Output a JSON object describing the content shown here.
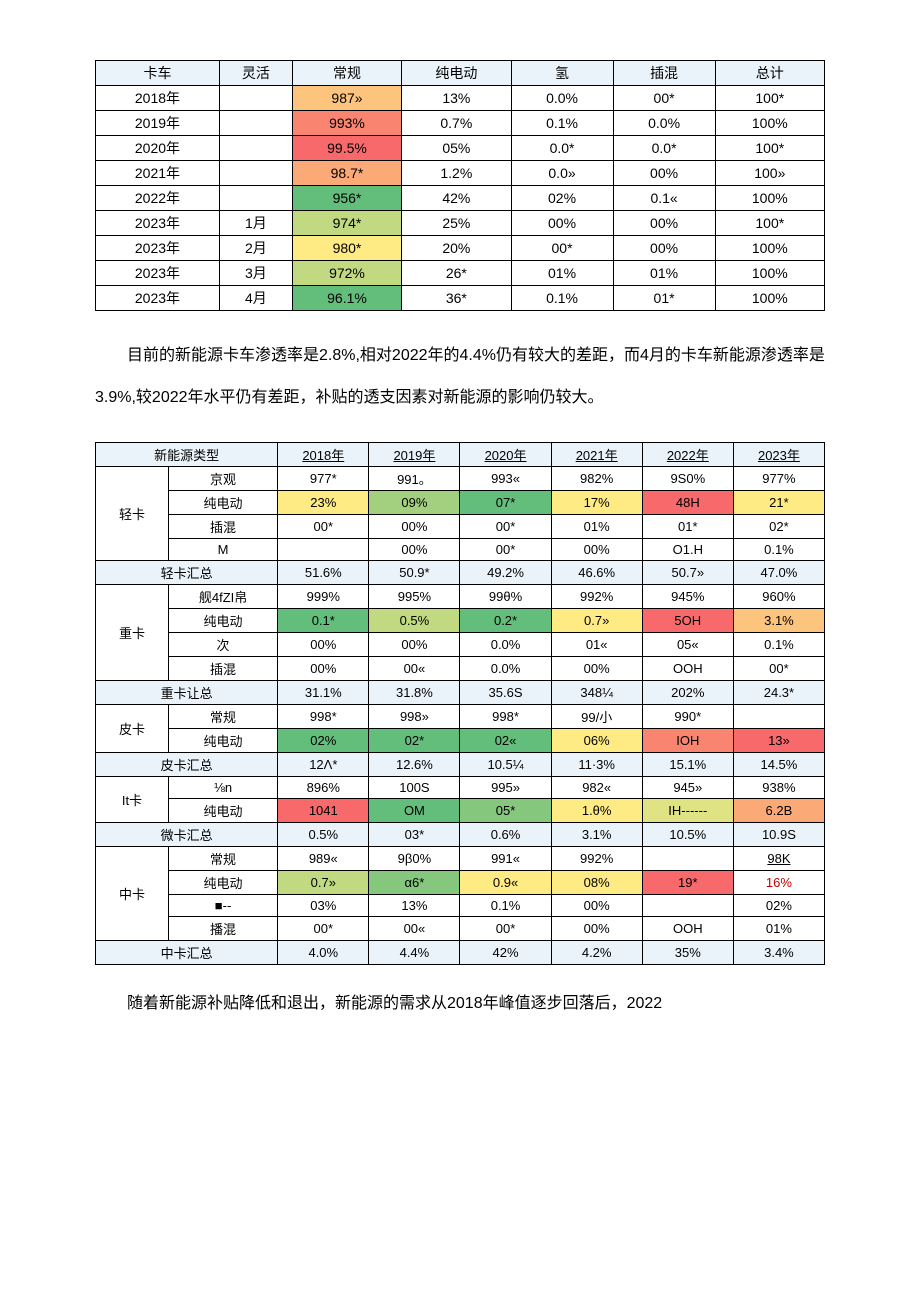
{
  "colors": {
    "header_bg": "#eaf3fa",
    "heat": {
      "deep_red": "#f8696b",
      "red": "#f98570",
      "orange": "#fba977",
      "lt_orange": "#fdc47d",
      "yellow": "#ffe383",
      "lt_yellow": "#ffeb84",
      "pale_yellow": "#e0e383",
      "yellow_green": "#c1da81",
      "lt_green": "#a2d07f",
      "green": "#84c77d",
      "deep_green": "#63be7b"
    }
  },
  "table1": {
    "headers": [
      "卡车",
      "灵活",
      "常规",
      "纯电动",
      "氢",
      "插混",
      "总计"
    ],
    "rows": [
      {
        "c0": "2018年",
        "c1": "",
        "c2": {
          "v": "987»",
          "bg": "lt_orange"
        },
        "c3": "13%",
        "c4": "0.0%",
        "c5": "00*",
        "c6": "100*"
      },
      {
        "c0": "2019年",
        "c1": "",
        "c2": {
          "v": "993%",
          "bg": "red"
        },
        "c3": "0.7%",
        "c4": "0.1%",
        "c5": "0.0%",
        "c6": "100%"
      },
      {
        "c0": "2020年",
        "c1": "",
        "c2": {
          "v": "99.5%",
          "bg": "deep_red"
        },
        "c3": "05%",
        "c4": "0.0*",
        "c5": "0.0*",
        "c6": "100*"
      },
      {
        "c0": "2021年",
        "c1": "",
        "c2": {
          "v": "98.7*",
          "bg": "orange"
        },
        "c3": "1.2%",
        "c4": "0.0»",
        "c5": "00%",
        "c6": "100»"
      },
      {
        "c0": "2022年",
        "c1": "",
        "c2": {
          "v": "956*",
          "bg": "deep_green"
        },
        "c3": "42%",
        "c4": "02%",
        "c5": "0.1«",
        "c6": "100%"
      },
      {
        "c0": "2023年",
        "c1": "1月",
        "c2": {
          "v": "974*",
          "bg": "yellow_green"
        },
        "c3": "25%",
        "c4": "00%",
        "c5": "00%",
        "c6": "100*"
      },
      {
        "c0": "2023年",
        "c1": "2月",
        "c2": {
          "v": "980*",
          "bg": "lt_yellow"
        },
        "c3": "20%",
        "c4": "00*",
        "c5": "00%",
        "c6": "100%"
      },
      {
        "c0": "2023年",
        "c1": "3月",
        "c2": {
          "v": "972%",
          "bg": "yellow_green"
        },
        "c3": "26*",
        "c4": "01%",
        "c5": "01%",
        "c6": "100%"
      },
      {
        "c0": "2023年",
        "c1": "4月",
        "c2": {
          "v": "96.1%",
          "bg": "deep_green"
        },
        "c3": "36*",
        "c4": "0.1%",
        "c5": "01*",
        "c6": "100%"
      }
    ]
  },
  "para1": "目前的新能源卡车渗透率是2.8%,相对2022年的4.4%仍有较大的差距，而4月的卡车新能源渗透率是3.9%,较2022年水平仍有差距，补贴的透支因素对新能源的影响仍较大。",
  "table2": {
    "headers": [
      "新能源类型",
      "2018年",
      "2019年",
      "2020年",
      "2021年",
      "2022年",
      "2023年"
    ],
    "groups": [
      {
        "cat": "轻卡",
        "rows": [
          {
            "sub": "京观",
            "vals": [
              {
                "v": "977*"
              },
              {
                "v": "991。"
              },
              {
                "v": "993«"
              },
              {
                "v": "982%"
              },
              {
                "v": "9S0%"
              },
              {
                "v": "977%"
              }
            ]
          },
          {
            "sub": "纯电动",
            "vals": [
              {
                "v": "23%",
                "bg": "lt_yellow"
              },
              {
                "v": "09%",
                "bg": "lt_green"
              },
              {
                "v": "07*",
                "bg": "deep_green"
              },
              {
                "v": "17%",
                "bg": "lt_yellow"
              },
              {
                "v": "48H",
                "bg": "deep_red"
              },
              {
                "v": "21*",
                "bg": "lt_yellow"
              }
            ]
          },
          {
            "sub": "插混",
            "vals": [
              {
                "v": "00*"
              },
              {
                "v": "00%"
              },
              {
                "v": "00*"
              },
              {
                "v": "01%"
              },
              {
                "v": "01*"
              },
              {
                "v": "02*"
              }
            ]
          },
          {
            "sub": "M",
            "vals": [
              {
                "v": ""
              },
              {
                "v": "00%"
              },
              {
                "v": "00*"
              },
              {
                "v": "00%"
              },
              {
                "v": "O1.H"
              },
              {
                "v": "0.1%"
              }
            ]
          }
        ],
        "sum": {
          "label": "轻卡汇总",
          "vals": [
            "51.6%",
            "50.9*",
            "49.2%",
            "46.6%",
            "50.7»",
            "47.0%"
          ]
        }
      },
      {
        "cat": "重卡",
        "rows": [
          {
            "sub": "舰4fZI帛",
            "vals": [
              {
                "v": "999%"
              },
              {
                "v": "995%"
              },
              {
                "v": "99θ%"
              },
              {
                "v": "992%"
              },
              {
                "v": "945%"
              },
              {
                "v": "960%"
              }
            ]
          },
          {
            "sub": "纯电动",
            "vals": [
              {
                "v": "0.1*",
                "bg": "deep_green"
              },
              {
                "v": "0.5%",
                "bg": "yellow_green"
              },
              {
                "v": "0.2*",
                "bg": "deep_green"
              },
              {
                "v": "0.7»",
                "bg": "lt_yellow"
              },
              {
                "v": "5OH",
                "bg": "deep_red"
              },
              {
                "v": "3.1%",
                "bg": "lt_orange"
              }
            ]
          },
          {
            "sub": "次",
            "vals": [
              {
                "v": "00%"
              },
              {
                "v": "00%"
              },
              {
                "v": "0.0%"
              },
              {
                "v": "01«"
              },
              {
                "v": "05«"
              },
              {
                "v": "0.1%"
              }
            ]
          },
          {
            "sub": "插混",
            "vals": [
              {
                "v": "00%"
              },
              {
                "v": "00«"
              },
              {
                "v": "0.0%"
              },
              {
                "v": "00%"
              },
              {
                "v": "OOH"
              },
              {
                "v": "00*"
              }
            ]
          }
        ],
        "sum": {
          "label": "重卡让总",
          "vals": [
            "31.1%",
            "31.8%",
            "35.6S",
            "348¼",
            "202%",
            "24.3*"
          ]
        }
      },
      {
        "cat": "皮卡",
        "rows": [
          {
            "sub": "常规",
            "vals": [
              {
                "v": "998*"
              },
              {
                "v": "998»"
              },
              {
                "v": "998*"
              },
              {
                "v": "99/小"
              },
              {
                "v": "990*"
              },
              {
                "v": ""
              }
            ]
          },
          {
            "sub": "纯电动",
            "vals": [
              {
                "v": "02%",
                "bg": "deep_green"
              },
              {
                "v": "02*",
                "bg": "deep_green"
              },
              {
                "v": "02«",
                "bg": "deep_green"
              },
              {
                "v": "06%",
                "bg": "lt_yellow"
              },
              {
                "v": "IOH",
                "bg": "red"
              },
              {
                "v": "13»",
                "bg": "deep_red"
              }
            ]
          }
        ],
        "sum": {
          "label": "皮卡汇总",
          "vals": [
            "12Λ*",
            "12.6%",
            "10.5¼",
            "11·3%",
            "15.1%",
            "14.5%"
          ]
        }
      },
      {
        "cat": "It卡",
        "rows": [
          {
            "sub": "⅛n",
            "vals": [
              {
                "v": "896%"
              },
              {
                "v": "100S"
              },
              {
                "v": "995»"
              },
              {
                "v": "982«"
              },
              {
                "v": "945»"
              },
              {
                "v": "938%"
              }
            ]
          },
          {
            "sub": "纯电动",
            "vals": [
              {
                "v": "1041",
                "bg": "deep_red"
              },
              {
                "v": "OM",
                "bg": "deep_green"
              },
              {
                "v": "05*",
                "bg": "green"
              },
              {
                "v": "1.θ%",
                "bg": "lt_yellow"
              },
              {
                "v": "IH------",
                "bg": "pale_yellow"
              },
              {
                "v": "6.2B",
                "bg": "orange"
              }
            ]
          }
        ],
        "sum": {
          "label": "微卡汇总",
          "vals": [
            "0.5%",
            "03*",
            "0.6%",
            "3.1%",
            "10.5%",
            "10.9S"
          ]
        }
      },
      {
        "cat": "中卡",
        "rows": [
          {
            "sub": "常规",
            "vals": [
              {
                "v": "989«"
              },
              {
                "v": "9β0%"
              },
              {
                "v": "991«"
              },
              {
                "v": "992%"
              },
              {
                "v": ""
              },
              {
                "v": "98K",
                "underline": true
              }
            ]
          },
          {
            "sub": "纯电动",
            "vals": [
              {
                "v": "0.7»",
                "bg": "yellow_green"
              },
              {
                "v": "α6*",
                "bg": "green"
              },
              {
                "v": "0.9«",
                "bg": "lt_yellow"
              },
              {
                "v": "08%",
                "bg": "lt_yellow"
              },
              {
                "v": "19*",
                "bg": "deep_red"
              },
              {
                "v": "16%",
                "color": "#c00000"
              }
            ]
          },
          {
            "sub": "■--",
            "vals": [
              {
                "v": "03%"
              },
              {
                "v": "13%"
              },
              {
                "v": "0.1%"
              },
              {
                "v": "00%"
              },
              {
                "v": ""
              },
              {
                "v": "02%"
              }
            ]
          },
          {
            "sub": "播混",
            "vals": [
              {
                "v": "00*"
              },
              {
                "v": "00«"
              },
              {
                "v": "00*"
              },
              {
                "v": "00%"
              },
              {
                "v": "OOH"
              },
              {
                "v": "01%"
              }
            ]
          }
        ],
        "sum": {
          "label": "中卡汇总",
          "vals": [
            "4.0%",
            "4.4%",
            "42%",
            "4.2%",
            "35%",
            "3.4%"
          ]
        }
      }
    ]
  },
  "para2": "随着新能源补贴降低和退出，新能源的需求从2018年峰值逐步回落后，2022"
}
